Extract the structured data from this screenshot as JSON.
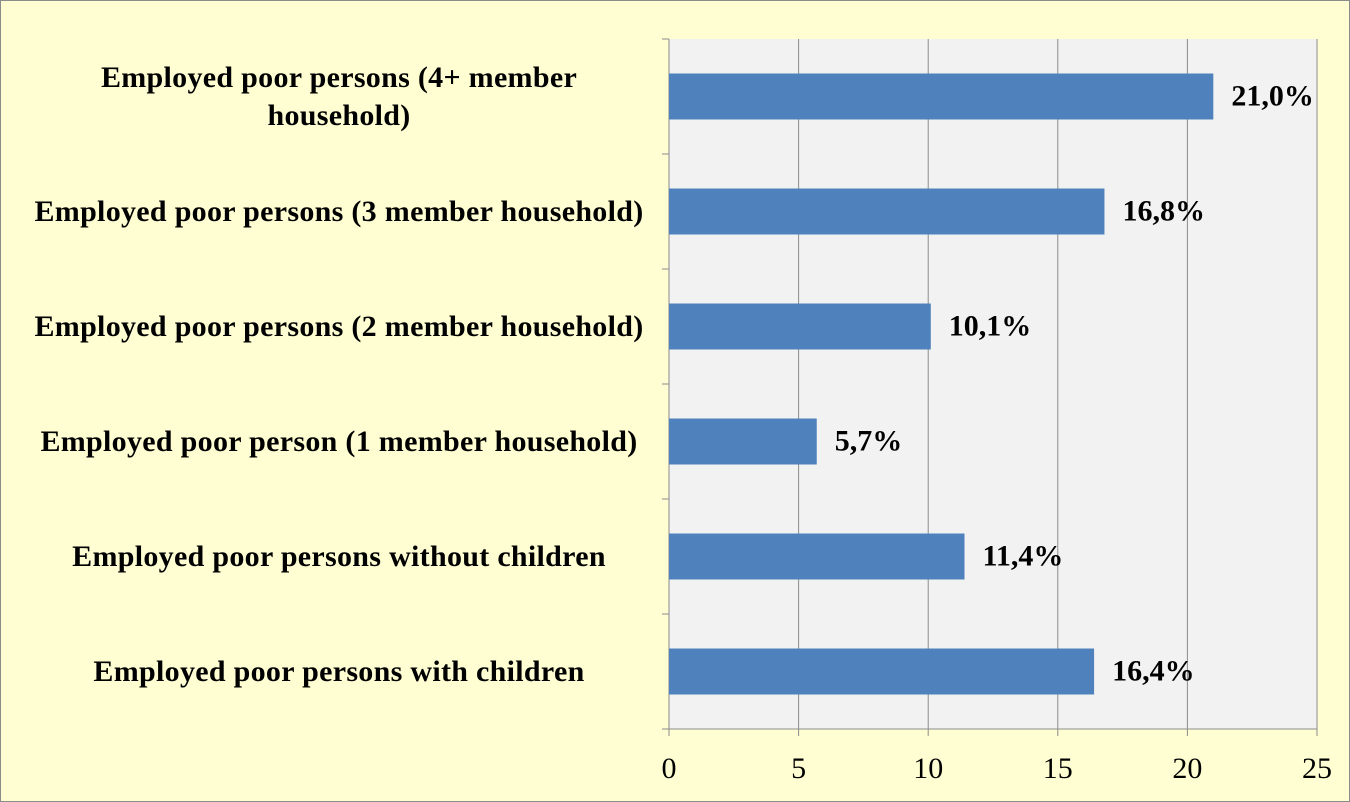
{
  "chart_data": {
    "type": "bar",
    "orientation": "horizontal",
    "categories": [
      "Employed poor persons (4+ member household)",
      "Employed poor persons (3 member household)",
      "Employed poor persons (2 member household)",
      "Employed poor person (1 member household)",
      "Employed poor persons without children",
      "Employed poor persons with children"
    ],
    "values": [
      21.0,
      16.8,
      10.1,
      5.7,
      11.4,
      16.4
    ],
    "value_labels": [
      "21,0%",
      "16,8%",
      "10,1%",
      "5,7%",
      "11,4%",
      "16,4%"
    ],
    "color": "#4f81bd",
    "xlim": [
      0,
      25
    ],
    "xticks": [
      0,
      5,
      10,
      15,
      20,
      25
    ],
    "grid": true
  }
}
